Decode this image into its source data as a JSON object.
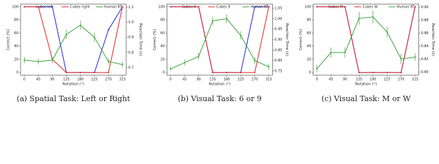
{
  "chart_data": [
    {
      "type": "line",
      "caption": "(a)  Spatial Task: Left or Right",
      "xlabel": "Rotation (°)",
      "ylabel": "Correct (%)",
      "y2label": "Reaction Time (s)",
      "x": [
        0,
        45,
        90,
        135,
        180,
        225,
        270,
        315
      ],
      "xlim": [
        -12,
        327
      ],
      "xticks": [
        0,
        45,
        90,
        135,
        180,
        225,
        270,
        315
      ],
      "ylim": [
        -4,
        104
      ],
      "yticks": [
        0,
        20,
        40,
        60,
        80,
        100
      ],
      "y2lim": [
        0.65,
        1.12
      ],
      "y2ticks": [
        0.7,
        0.8,
        0.9,
        {
          "value": 1,
          "label": "1.0"
        },
        1.1
      ],
      "series": [
        {
          "name": "Cubes left",
          "color": "#1f1fe0",
          "values": [
            100,
            100,
            100,
            0,
            0,
            0,
            65,
            100
          ]
        },
        {
          "name": "Cubes right",
          "color": "#e01f1f",
          "values": [
            100,
            100,
            20,
            0,
            0,
            0,
            0,
            100
          ]
        },
        {
          "name": "Human RT",
          "color": "#3aa03a",
          "axis": "y2",
          "values": [
            0.75,
            0.74,
            0.75,
            0.92,
            0.98,
            0.9,
            0.74,
            0.72
          ],
          "errors": [
            0.02,
            0.02,
            0.02,
            0.03,
            0.03,
            0.03,
            0.02,
            0.02
          ]
        }
      ]
    },
    {
      "type": "line",
      "caption": "(b)  Visual Task: 6 or 9",
      "xlabel": "Rotation (°)",
      "ylabel": "Correct (%)",
      "y2label": "Reaction Time (s)",
      "x": [
        0,
        45,
        90,
        135,
        180,
        225,
        270,
        315
      ],
      "xlim": [
        -12,
        327
      ],
      "xticks": [
        0,
        45,
        90,
        135,
        180,
        225,
        270,
        315
      ],
      "ylim": [
        -4,
        104
      ],
      "yticks": [
        0,
        20,
        40,
        60,
        80,
        100
      ],
      "y2lim": [
        0.73,
        1.07
      ],
      "y2ticks": [
        0.75,
        {
          "value": 0.8,
          "label": "0.80"
        },
        0.85,
        {
          "value": 0.9,
          "label": "0.90"
        },
        0.95,
        {
          "value": 1,
          "label": "1.00"
        },
        1.05
      ],
      "series": [
        {
          "name": "Cubes 6",
          "color": "#1f1fe0",
          "values": [
            100,
            100,
            100,
            0,
            0,
            0,
            100,
            100
          ]
        },
        {
          "name": "Cubes 9",
          "color": "#e01f1f",
          "values": [
            100,
            100,
            100,
            0,
            0,
            0,
            0,
            100
          ]
        },
        {
          "name": "Human RT",
          "color": "#3aa03a",
          "axis": "y2",
          "values": [
            0.76,
            0.79,
            0.82,
            0.99,
            1.0,
            0.92,
            0.8,
            0.77
          ],
          "errors": [
            0.01,
            0.015,
            0.015,
            0.02,
            0.02,
            0.02,
            0.015,
            0.015
          ]
        }
      ]
    },
    {
      "type": "line",
      "caption": "(c)  Visual Task: M or W",
      "xlabel": "Rotation (°)",
      "ylabel": "Correct (%)",
      "y2label": "Reaction Time (s)",
      "x": [
        0,
        45,
        90,
        135,
        180,
        225,
        270,
        315
      ],
      "xlim": [
        -12,
        327
      ],
      "xticks": [
        0,
        45,
        90,
        135,
        180,
        225,
        270,
        315
      ],
      "ylim": [
        -4,
        104
      ],
      "yticks": [
        0,
        20,
        40,
        60,
        80,
        100
      ],
      "y2lim": [
        0.795,
        0.905
      ],
      "y2ticks": [
        {
          "value": 0.8,
          "label": "0.80"
        },
        0.82,
        0.84,
        0.86,
        0.88,
        {
          "value": 0.9,
          "label": "0.90"
        }
      ],
      "series": [
        {
          "name": "Cubes M",
          "color": "#1f1fe0",
          "values": [
            100,
            100,
            100,
            0,
            0,
            0,
            0,
            100
          ]
        },
        {
          "name": "Cubes W",
          "color": "#e01f1f",
          "values": [
            100,
            100,
            100,
            0,
            0,
            0,
            0,
            100
          ]
        },
        {
          "name": "Human RT",
          "color": "#3aa03a",
          "axis": "y2",
          "values": [
            0.805,
            0.83,
            0.83,
            0.883,
            0.885,
            0.862,
            0.82,
            0.823
          ],
          "errors": [
            0.006,
            0.008,
            0.008,
            0.01,
            0.01,
            0.008,
            0.008,
            0.006
          ]
        }
      ]
    }
  ]
}
